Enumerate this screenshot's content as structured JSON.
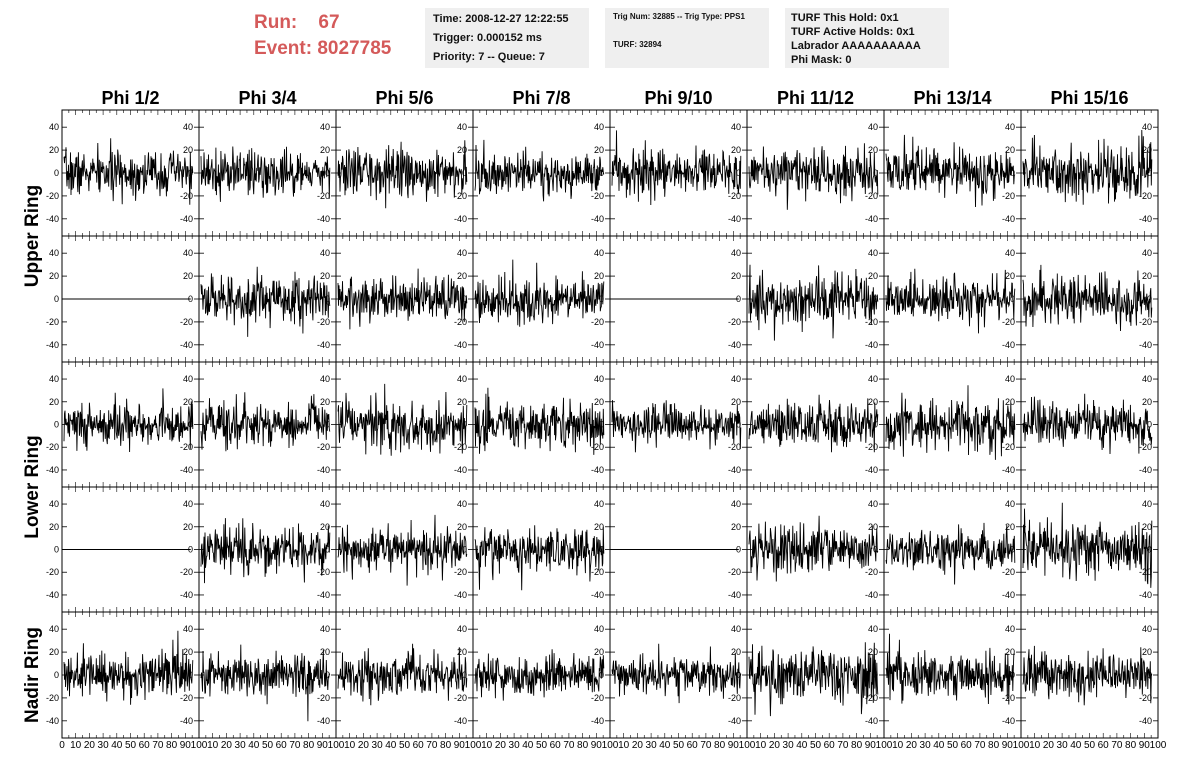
{
  "header": {
    "run_label": "Run:",
    "run_value": "67",
    "event_label": "Event:",
    "event_value": "8027785",
    "time": "Time: 2008-12-27 12:22:55",
    "trigger": "Trigger: 0.000152 ms",
    "priority": "Priority: 7 -- Queue: 7",
    "trig_num": "Trig Num: 32885 -- Trig Type: PPS1",
    "turf": "TURF: 32894",
    "turf_this_hold": "TURF This Hold: 0x1",
    "turf_active_holds": "TURF Active Holds: 0x1",
    "labrador": "Labrador AAAAAAAAAA",
    "phi_mask": "Phi Mask: 0"
  },
  "chart_data": {
    "type": "line",
    "columns": [
      "Phi 1/2",
      "Phi 3/4",
      "Phi 5/6",
      "Phi 7/8",
      "Phi 9/10",
      "Phi 11/12",
      "Phi 13/14",
      "Phi 15/16"
    ],
    "ring_labels": [
      {
        "text": "Upper Ring",
        "rows": [
          0,
          1
        ]
      },
      {
        "text": "Lower Ring",
        "rows": [
          2,
          3
        ]
      },
      {
        "text": "Nadir Ring",
        "rows": [
          4
        ]
      }
    ],
    "rows": 5,
    "xlim": [
      0,
      100
    ],
    "x_ticks": [
      "0",
      "10",
      "20",
      "30",
      "40",
      "50",
      "60",
      "70",
      "80",
      "90",
      "100"
    ],
    "ylim": [
      -55,
      55
    ],
    "y_ticks": [
      -40,
      -20,
      0,
      20,
      40
    ],
    "panels": [
      {
        "row": 0,
        "col": 0,
        "amplitude": 13,
        "flat": false
      },
      {
        "row": 0,
        "col": 1,
        "amplitude": 14,
        "flat": false
      },
      {
        "row": 0,
        "col": 2,
        "amplitude": 14,
        "flat": false
      },
      {
        "row": 0,
        "col": 3,
        "amplitude": 13,
        "flat": false
      },
      {
        "row": 0,
        "col": 4,
        "amplitude": 13,
        "flat": false
      },
      {
        "row": 0,
        "col": 5,
        "amplitude": 13,
        "flat": false
      },
      {
        "row": 0,
        "col": 6,
        "amplitude": 14,
        "flat": false
      },
      {
        "row": 0,
        "col": 7,
        "amplitude": 17,
        "flat": false
      },
      {
        "row": 1,
        "col": 0,
        "amplitude": 0,
        "flat": true
      },
      {
        "row": 1,
        "col": 1,
        "amplitude": 14,
        "flat": false
      },
      {
        "row": 1,
        "col": 2,
        "amplitude": 13,
        "flat": false
      },
      {
        "row": 1,
        "col": 3,
        "amplitude": 13,
        "flat": false
      },
      {
        "row": 1,
        "col": 4,
        "amplitude": 0,
        "flat": true
      },
      {
        "row": 1,
        "col": 5,
        "amplitude": 14,
        "flat": false
      },
      {
        "row": 1,
        "col": 6,
        "amplitude": 13,
        "flat": false
      },
      {
        "row": 1,
        "col": 7,
        "amplitude": 15,
        "flat": false
      },
      {
        "row": 2,
        "col": 0,
        "amplitude": 13,
        "flat": false
      },
      {
        "row": 2,
        "col": 1,
        "amplitude": 14,
        "flat": false
      },
      {
        "row": 2,
        "col": 2,
        "amplitude": 15,
        "flat": false
      },
      {
        "row": 2,
        "col": 3,
        "amplitude": 14,
        "flat": false
      },
      {
        "row": 2,
        "col": 4,
        "amplitude": 12,
        "flat": false
      },
      {
        "row": 2,
        "col": 5,
        "amplitude": 14,
        "flat": false
      },
      {
        "row": 2,
        "col": 6,
        "amplitude": 16,
        "flat": false
      },
      {
        "row": 2,
        "col": 7,
        "amplitude": 13,
        "flat": false
      },
      {
        "row": 3,
        "col": 0,
        "amplitude": 0,
        "flat": true
      },
      {
        "row": 3,
        "col": 1,
        "amplitude": 14,
        "flat": false
      },
      {
        "row": 3,
        "col": 2,
        "amplitude": 13,
        "flat": false
      },
      {
        "row": 3,
        "col": 3,
        "amplitude": 15,
        "flat": false
      },
      {
        "row": 3,
        "col": 4,
        "amplitude": 0,
        "flat": true
      },
      {
        "row": 3,
        "col": 5,
        "amplitude": 15,
        "flat": false
      },
      {
        "row": 3,
        "col": 6,
        "amplitude": 12,
        "flat": false
      },
      {
        "row": 3,
        "col": 7,
        "amplitude": 17,
        "flat": false
      },
      {
        "row": 4,
        "col": 0,
        "amplitude": 14,
        "flat": false
      },
      {
        "row": 4,
        "col": 1,
        "amplitude": 12,
        "flat": false
      },
      {
        "row": 4,
        "col": 2,
        "amplitude": 12,
        "flat": false
      },
      {
        "row": 4,
        "col": 3,
        "amplitude": 12,
        "flat": false
      },
      {
        "row": 4,
        "col": 4,
        "amplitude": 11,
        "flat": false
      },
      {
        "row": 4,
        "col": 5,
        "amplitude": 16,
        "flat": false
      },
      {
        "row": 4,
        "col": 6,
        "amplitude": 15,
        "flat": false
      },
      {
        "row": 4,
        "col": 7,
        "amplitude": 13,
        "flat": false
      }
    ],
    "samples_per_panel": 260
  },
  "colors": {
    "run_text": "#d45a5a",
    "box_background": "#efefef",
    "trace": "#000000"
  }
}
